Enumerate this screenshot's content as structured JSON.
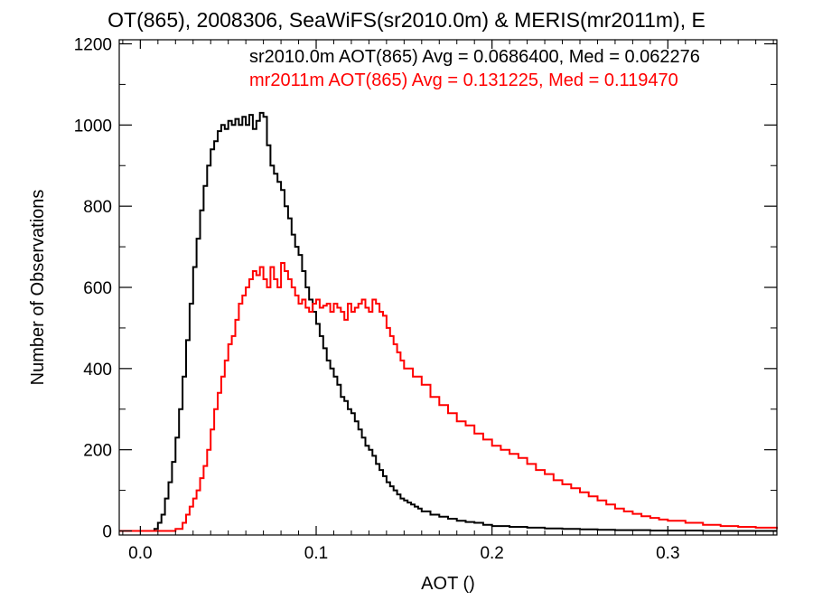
{
  "chart_data": {
    "type": "line",
    "title": "OT(865), 2008306, SeaWiFS(sr2010.0m) & MERIS(mr2011m), E",
    "xlabel": "AOT ()",
    "ylabel": "Number of Observations",
    "xlim": [
      -0.012,
      0.362
    ],
    "ylim": [
      -10,
      1210
    ],
    "x_ticks": [
      0.0,
      0.1,
      0.2,
      0.3
    ],
    "x_tick_labels": [
      "0.0",
      "0.1",
      "0.2",
      "0.3"
    ],
    "y_ticks": [
      0,
      200,
      400,
      600,
      800,
      1000,
      1200
    ],
    "y_tick_labels": [
      "0",
      "200",
      "400",
      "600",
      "800",
      "1000",
      "1200"
    ],
    "grid": false,
    "legend_position": "top-right",
    "series": [
      {
        "name": "sr2010.0m AOT(865) Avg = 0.0686400, Med = 0.062276",
        "color": "#000000",
        "x": [
          -0.012,
          0.0,
          0.005,
          0.008,
          0.01,
          0.012,
          0.014,
          0.016,
          0.018,
          0.02,
          0.022,
          0.024,
          0.026,
          0.028,
          0.03,
          0.032,
          0.034,
          0.036,
          0.038,
          0.04,
          0.042,
          0.044,
          0.046,
          0.048,
          0.05,
          0.052,
          0.054,
          0.056,
          0.058,
          0.06,
          0.062,
          0.064,
          0.066,
          0.068,
          0.07,
          0.072,
          0.074,
          0.076,
          0.078,
          0.08,
          0.082,
          0.084,
          0.086,
          0.088,
          0.09,
          0.092,
          0.094,
          0.096,
          0.098,
          0.1,
          0.102,
          0.104,
          0.106,
          0.108,
          0.11,
          0.112,
          0.114,
          0.116,
          0.118,
          0.12,
          0.122,
          0.124,
          0.126,
          0.128,
          0.13,
          0.132,
          0.134,
          0.136,
          0.138,
          0.14,
          0.142,
          0.144,
          0.146,
          0.148,
          0.15,
          0.152,
          0.154,
          0.156,
          0.158,
          0.16,
          0.165,
          0.17,
          0.175,
          0.18,
          0.185,
          0.19,
          0.195,
          0.2,
          0.21,
          0.22,
          0.23,
          0.24,
          0.25,
          0.26,
          0.27,
          0.28,
          0.29,
          0.3,
          0.31,
          0.32,
          0.33,
          0.34,
          0.35,
          0.362
        ],
        "values": [
          0,
          0,
          0,
          5,
          20,
          40,
          80,
          120,
          170,
          230,
          300,
          380,
          470,
          560,
          650,
          720,
          790,
          850,
          900,
          940,
          960,
          985,
          1000,
          990,
          1010,
          1000,
          1015,
          1000,
          1020,
          1000,
          1025,
          990,
          1010,
          1030,
          1020,
          950,
          900,
          880,
          860,
          840,
          800,
          770,
          730,
          700,
          680,
          640,
          600,
          570,
          540,
          510,
          480,
          450,
          420,
          400,
          380,
          360,
          330,
          320,
          300,
          290,
          270,
          250,
          230,
          210,
          200,
          185,
          165,
          150,
          135,
          120,
          110,
          100,
          90,
          80,
          75,
          70,
          65,
          60,
          55,
          48,
          40,
          35,
          30,
          25,
          22,
          20,
          15,
          12,
          10,
          8,
          6,
          5,
          4,
          3,
          2,
          2,
          1,
          1,
          1,
          0,
          0,
          0,
          0,
          0
        ]
      },
      {
        "name": "mr2011m AOT(865) Avg = 0.131225, Med = 0.119470",
        "color": "#ff0000",
        "x": [
          -0.012,
          0.01,
          0.02,
          0.024,
          0.026,
          0.028,
          0.03,
          0.032,
          0.034,
          0.036,
          0.038,
          0.04,
          0.042,
          0.044,
          0.046,
          0.048,
          0.05,
          0.052,
          0.054,
          0.056,
          0.058,
          0.06,
          0.062,
          0.064,
          0.066,
          0.068,
          0.07,
          0.072,
          0.074,
          0.076,
          0.078,
          0.08,
          0.082,
          0.084,
          0.086,
          0.088,
          0.09,
          0.092,
          0.094,
          0.096,
          0.098,
          0.1,
          0.102,
          0.104,
          0.106,
          0.108,
          0.11,
          0.112,
          0.114,
          0.116,
          0.118,
          0.12,
          0.122,
          0.124,
          0.126,
          0.128,
          0.13,
          0.132,
          0.134,
          0.136,
          0.138,
          0.14,
          0.142,
          0.144,
          0.146,
          0.148,
          0.15,
          0.155,
          0.16,
          0.165,
          0.17,
          0.175,
          0.18,
          0.185,
          0.19,
          0.195,
          0.2,
          0.205,
          0.21,
          0.215,
          0.22,
          0.225,
          0.23,
          0.235,
          0.24,
          0.245,
          0.25,
          0.255,
          0.26,
          0.265,
          0.27,
          0.275,
          0.28,
          0.285,
          0.29,
          0.295,
          0.3,
          0.31,
          0.32,
          0.33,
          0.34,
          0.35,
          0.362
        ],
        "values": [
          0,
          0,
          5,
          20,
          40,
          60,
          80,
          100,
          130,
          160,
          200,
          250,
          300,
          340,
          380,
          420,
          460,
          480,
          520,
          560,
          580,
          600,
          620,
          640,
          630,
          650,
          620,
          600,
          650,
          620,
          600,
          660,
          640,
          620,
          600,
          580,
          560,
          570,
          550,
          540,
          560,
          570,
          550,
          555,
          560,
          540,
          560,
          550,
          540,
          520,
          560,
          540,
          550,
          560,
          570,
          550,
          540,
          570,
          560,
          540,
          530,
          500,
          480,
          460,
          440,
          420,
          400,
          380,
          360,
          330,
          310,
          290,
          270,
          260,
          240,
          225,
          210,
          200,
          190,
          180,
          165,
          150,
          140,
          125,
          115,
          105,
          95,
          85,
          75,
          65,
          55,
          48,
          42,
          36,
          32,
          28,
          25,
          20,
          15,
          12,
          10,
          8,
          5
        ]
      }
    ]
  }
}
